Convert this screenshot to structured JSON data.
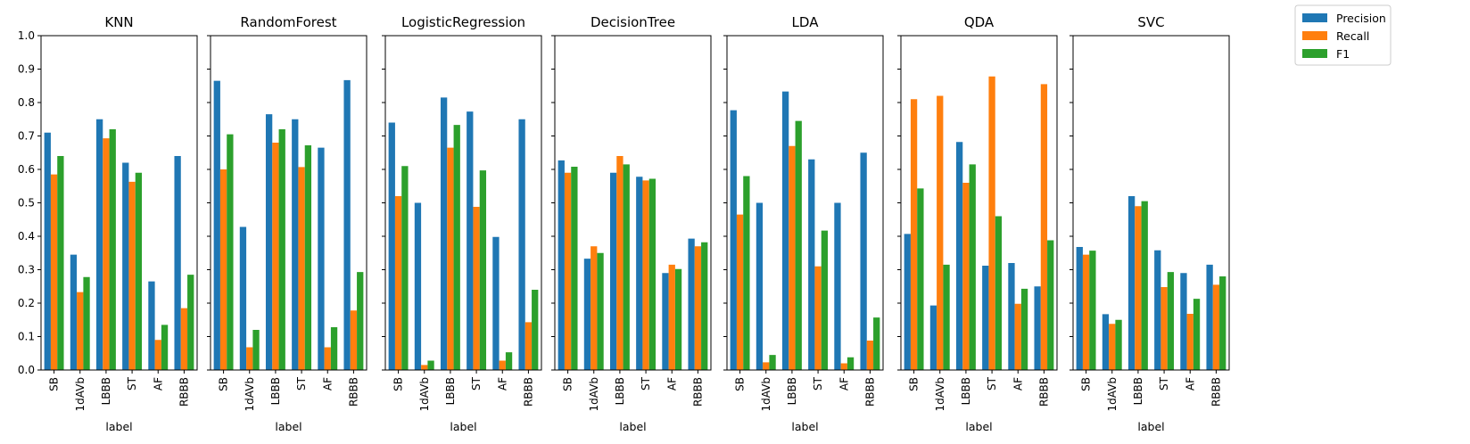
{
  "chart_data": {
    "type": "bar",
    "categories": [
      "SB",
      "1dAVb",
      "LBBB",
      "ST",
      "AF",
      "RBBB"
    ],
    "xlabel": "label",
    "ylim": [
      0,
      1.0
    ],
    "yticks": [
      "0.0",
      "0.1",
      "0.2",
      "0.3",
      "0.4",
      "0.5",
      "0.6",
      "0.7",
      "0.8",
      "0.9",
      "1.0"
    ],
    "legend": {
      "placement": "top-right (outside)",
      "entries": [
        {
          "name": "Precision",
          "color": "#1f77b4"
        },
        {
          "name": "Recall",
          "color": "#ff7f0e"
        },
        {
          "name": "F1",
          "color": "#2ca02c"
        }
      ]
    },
    "panels": [
      {
        "title": "KNN",
        "series": [
          {
            "name": "Precision",
            "values": [
              0.71,
              0.345,
              0.75,
              0.62,
              0.265,
              0.64
            ]
          },
          {
            "name": "Recall",
            "values": [
              0.585,
              0.233,
              0.693,
              0.563,
              0.09,
              0.185
            ]
          },
          {
            "name": "F1",
            "values": [
              0.64,
              0.278,
              0.72,
              0.59,
              0.135,
              0.285
            ]
          }
        ]
      },
      {
        "title": "RandomForest",
        "series": [
          {
            "name": "Precision",
            "values": [
              0.865,
              0.428,
              0.765,
              0.75,
              0.665,
              0.867
            ]
          },
          {
            "name": "Recall",
            "values": [
              0.6,
              0.068,
              0.68,
              0.607,
              0.068,
              0.178
            ]
          },
          {
            "name": "F1",
            "values": [
              0.705,
              0.12,
              0.72,
              0.672,
              0.128,
              0.293
            ]
          }
        ]
      },
      {
        "title": "LogisticRegression",
        "series": [
          {
            "name": "Precision",
            "values": [
              0.74,
              0.5,
              0.815,
              0.773,
              0.398,
              0.75
            ]
          },
          {
            "name": "Recall",
            "values": [
              0.52,
              0.015,
              0.665,
              0.488,
              0.028,
              0.143
            ]
          },
          {
            "name": "F1",
            "values": [
              0.61,
              0.028,
              0.733,
              0.597,
              0.053,
              0.24
            ]
          }
        ]
      },
      {
        "title": "DecisionTree",
        "series": [
          {
            "name": "Precision",
            "values": [
              0.627,
              0.333,
              0.59,
              0.578,
              0.29,
              0.393
            ]
          },
          {
            "name": "Recall",
            "values": [
              0.59,
              0.37,
              0.64,
              0.567,
              0.315,
              0.37
            ]
          },
          {
            "name": "F1",
            "values": [
              0.608,
              0.35,
              0.615,
              0.572,
              0.302,
              0.382
            ]
          }
        ]
      },
      {
        "title": "LDA",
        "series": [
          {
            "name": "Precision",
            "values": [
              0.777,
              0.5,
              0.833,
              0.63,
              0.5,
              0.65
            ]
          },
          {
            "name": "Recall",
            "values": [
              0.465,
              0.023,
              0.67,
              0.31,
              0.02,
              0.088
            ]
          },
          {
            "name": "F1",
            "values": [
              0.58,
              0.045,
              0.745,
              0.417,
              0.038,
              0.157
            ]
          }
        ]
      },
      {
        "title": "QDA",
        "series": [
          {
            "name": "Precision",
            "values": [
              0.407,
              0.193,
              0.682,
              0.312,
              0.32,
              0.25
            ]
          },
          {
            "name": "Recall",
            "values": [
              0.81,
              0.82,
              0.56,
              0.878,
              0.198,
              0.855
            ]
          },
          {
            "name": "F1",
            "values": [
              0.543,
              0.315,
              0.615,
              0.46,
              0.243,
              0.388
            ]
          }
        ]
      },
      {
        "title": "SVC",
        "series": [
          {
            "name": "Precision",
            "values": [
              0.368,
              0.167,
              0.52,
              0.358,
              0.29,
              0.315
            ]
          },
          {
            "name": "Recall",
            "values": [
              0.345,
              0.138,
              0.49,
              0.248,
              0.168,
              0.255
            ]
          },
          {
            "name": "F1",
            "values": [
              0.357,
              0.15,
              0.505,
              0.293,
              0.213,
              0.28
            ]
          }
        ]
      }
    ]
  }
}
